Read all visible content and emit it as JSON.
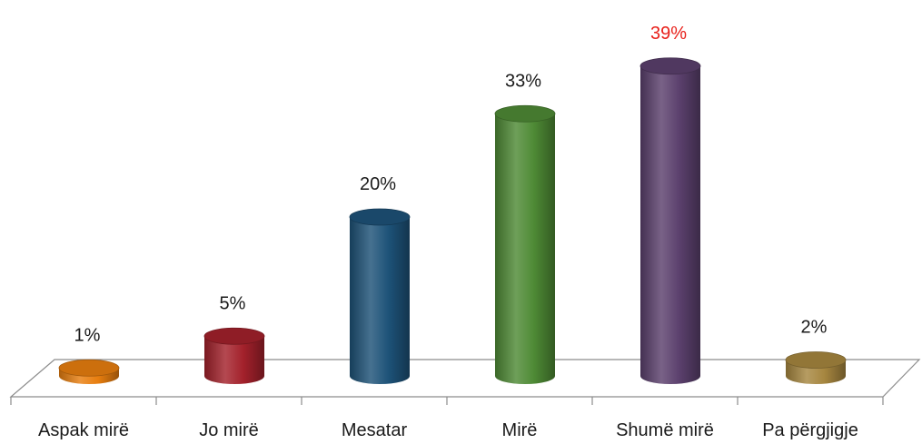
{
  "chart_data": {
    "type": "bar",
    "categories": [
      "Aspak mirë",
      "Jo mirë",
      "Mesatar",
      "Mirë",
      "Shumë mirë",
      "Pa përgjigje"
    ],
    "values": [
      1,
      5,
      20,
      33,
      39,
      2
    ],
    "value_labels": [
      "1%",
      "5%",
      "20%",
      "33%",
      "39%",
      "2%"
    ],
    "colors": [
      "#e87e0f",
      "#a3212b",
      "#1d5278",
      "#4e8a35",
      "#5b406d",
      "#a6863f"
    ],
    "highlight_label_color": "#e8201a",
    "highlight_index": 4,
    "title": "",
    "xlabel": "",
    "ylabel": "",
    "ylim": [
      0,
      40
    ],
    "grid": false,
    "legend": "none",
    "style": "3d-cylinder"
  }
}
